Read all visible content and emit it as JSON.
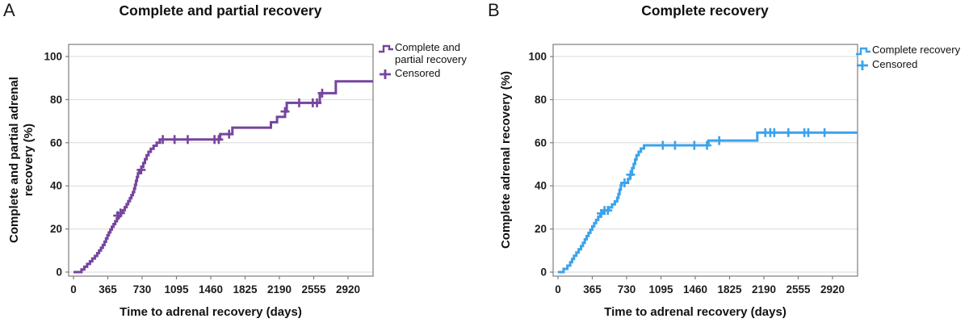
{
  "figure_background": "#ffffff",
  "grid_color": "#d9d9d9",
  "frame_color": "#7d7d7d",
  "chart_data": [
    {
      "panel_label": "A",
      "type": "step",
      "title": "Complete and partial recovery",
      "xlabel": "Time to adrenal recovery (days)",
      "ylabel": "Complete and partial adrenal\nrecovery (%)",
      "legend": {
        "series_label": "Complete and\npartial recovery",
        "censored_label": "Censored",
        "position": "right-top"
      },
      "color": "#76449E",
      "x_ticks": [
        0,
        365,
        730,
        1095,
        1460,
        1825,
        2190,
        2555,
        2920
      ],
      "y_ticks": [
        0,
        20,
        40,
        60,
        80,
        100
      ],
      "xlim": [
        0,
        3180
      ],
      "ylim": [
        0,
        100
      ],
      "grid": true,
      "series_steps_day_percent": [
        [
          0,
          0
        ],
        [
          85,
          1.2
        ],
        [
          115,
          2.5
        ],
        [
          145,
          3.8
        ],
        [
          175,
          5
        ],
        [
          200,
          6.3
        ],
        [
          228,
          7.5
        ],
        [
          252,
          8.8
        ],
        [
          272,
          10
        ],
        [
          292,
          11.3
        ],
        [
          312,
          12.6
        ],
        [
          330,
          14.1
        ],
        [
          346,
          15.6
        ],
        [
          361,
          17.1
        ],
        [
          376,
          18.4
        ],
        [
          392,
          19.7
        ],
        [
          408,
          21
        ],
        [
          426,
          22.3
        ],
        [
          444,
          23.6
        ],
        [
          462,
          25
        ],
        [
          482,
          26.2
        ],
        [
          505,
          27.4
        ],
        [
          525,
          28.7
        ],
        [
          545,
          30.1
        ],
        [
          565,
          31.5
        ],
        [
          582,
          32.9
        ],
        [
          600,
          34.3
        ],
        [
          616,
          35.7
        ],
        [
          632,
          37.1
        ],
        [
          645,
          38.7
        ],
        [
          655,
          40.5
        ],
        [
          665,
          42.3
        ],
        [
          675,
          44.1
        ],
        [
          686,
          45.9
        ],
        [
          700,
          47.4
        ],
        [
          722,
          48.8
        ],
        [
          742,
          50.6
        ],
        [
          760,
          52.4
        ],
        [
          778,
          54.2
        ],
        [
          798,
          55.8
        ],
        [
          822,
          57.2
        ],
        [
          852,
          58.6
        ],
        [
          885,
          60
        ],
        [
          920,
          61.5
        ],
        [
          1560,
          64
        ],
        [
          1690,
          67
        ],
        [
          2100,
          69.5
        ],
        [
          2165,
          72
        ],
        [
          2250,
          74.5
        ],
        [
          2268,
          78.5
        ],
        [
          2620,
          83
        ],
        [
          2790,
          88.5
        ]
      ],
      "censor_marks_day_percent": [
        [
          470,
          26.2
        ],
        [
          500,
          27.4
        ],
        [
          720,
          47.4
        ],
        [
          950,
          61.5
        ],
        [
          1075,
          61.5
        ],
        [
          1215,
          61.5
        ],
        [
          1500,
          61.5
        ],
        [
          1545,
          61.5
        ],
        [
          1655,
          64
        ],
        [
          2250,
          74.5
        ],
        [
          2400,
          78.5
        ],
        [
          2545,
          78.5
        ],
        [
          2590,
          78.5
        ],
        [
          2645,
          83
        ]
      ]
    },
    {
      "panel_label": "B",
      "type": "step",
      "title": "Complete recovery",
      "xlabel": "Time to adrenal recovery (days)",
      "ylabel": "Complete adrenal recovery (%)",
      "legend": {
        "series_label": "Complete recovery",
        "censored_label": "Censored",
        "position": "right-top"
      },
      "color": "#3BA3EC",
      "x_ticks": [
        0,
        365,
        730,
        1095,
        1460,
        1825,
        2190,
        2555,
        2920
      ],
      "y_ticks": [
        0,
        20,
        40,
        60,
        80,
        100
      ],
      "xlim": [
        0,
        3180
      ],
      "ylim": [
        0,
        100
      ],
      "grid": true,
      "series_steps_day_percent": [
        [
          0,
          0
        ],
        [
          60,
          1.5
        ],
        [
          100,
          3
        ],
        [
          130,
          4.6
        ],
        [
          150,
          6.1
        ],
        [
          170,
          7.6
        ],
        [
          195,
          9.1
        ],
        [
          220,
          10.6
        ],
        [
          245,
          12.1
        ],
        [
          265,
          13.6
        ],
        [
          285,
          15.2
        ],
        [
          305,
          16.7
        ],
        [
          325,
          18.2
        ],
        [
          345,
          19.7
        ],
        [
          365,
          21.2
        ],
        [
          385,
          22.7
        ],
        [
          405,
          24.2
        ],
        [
          428,
          25.7
        ],
        [
          450,
          27.2
        ],
        [
          478,
          28.6
        ],
        [
          540,
          30
        ],
        [
          575,
          31.4
        ],
        [
          605,
          32.8
        ],
        [
          630,
          34.4
        ],
        [
          643,
          36.2
        ],
        [
          655,
          38.2
        ],
        [
          668,
          40.2
        ],
        [
          678,
          41.4
        ],
        [
          745,
          43.2
        ],
        [
          765,
          45.2
        ],
        [
          788,
          48.2
        ],
        [
          805,
          50.2
        ],
        [
          820,
          52.2
        ],
        [
          835,
          54.2
        ],
        [
          858,
          55.8
        ],
        [
          882,
          57.3
        ],
        [
          915,
          58.8
        ],
        [
          1600,
          61
        ],
        [
          2120,
          64.7
        ]
      ],
      "censor_marks_day_percent": [
        [
          460,
          27.2
        ],
        [
          495,
          28.6
        ],
        [
          530,
          28.6
        ],
        [
          708,
          41.4
        ],
        [
          772,
          45.2
        ],
        [
          1115,
          58.8
        ],
        [
          1245,
          58.8
        ],
        [
          1450,
          58.8
        ],
        [
          1585,
          58.8
        ],
        [
          1715,
          61
        ],
        [
          2205,
          64.7
        ],
        [
          2258,
          64.7
        ],
        [
          2300,
          64.7
        ],
        [
          2450,
          64.7
        ],
        [
          2620,
          64.7
        ],
        [
          2662,
          64.7
        ],
        [
          2835,
          64.7
        ]
      ]
    }
  ]
}
